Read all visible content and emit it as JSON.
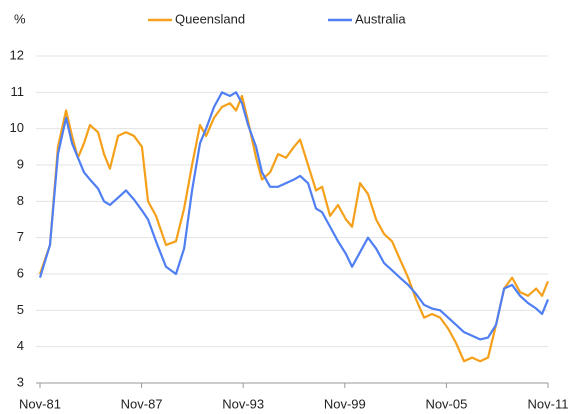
{
  "chart_data": {
    "type": "line",
    "y_label": "%",
    "xlim": [
      1981.83,
      2011.83
    ],
    "xticks": [
      {
        "value": 1981.83,
        "label": "Nov-81"
      },
      {
        "value": 1987.83,
        "label": "Nov-87"
      },
      {
        "value": 1993.83,
        "label": "Nov-93"
      },
      {
        "value": 1999.83,
        "label": "Nov-99"
      },
      {
        "value": 2005.83,
        "label": "Nov-05"
      },
      {
        "value": 2011.83,
        "label": "Nov-11"
      }
    ],
    "ylim": [
      3,
      12
    ],
    "yticks": [
      3,
      4,
      5,
      6,
      7,
      8,
      9,
      10,
      11,
      12
    ],
    "grid": true,
    "legend": "top",
    "x": [
      1981.83,
      1982.42,
      1982.89,
      1983.37,
      1983.72,
      1984.07,
      1984.43,
      1984.78,
      1985.26,
      1985.61,
      1985.96,
      1986.44,
      1986.91,
      1987.38,
      1987.85,
      1988.21,
      1988.68,
      1989.27,
      1989.86,
      1990.34,
      1990.81,
      1991.28,
      1991.64,
      1992.11,
      1992.58,
      1993.05,
      1993.41,
      1993.76,
      1994.12,
      1994.59,
      1994.94,
      1995.42,
      1995.89,
      1996.36,
      1996.83,
      1997.19,
      1997.66,
      1998.13,
      1998.49,
      1998.96,
      1999.43,
      1999.9,
      2000.26,
      2000.73,
      2001.2,
      2001.68,
      2002.15,
      2002.62,
      2003.09,
      2003.57,
      2004.04,
      2004.51,
      2004.98,
      2005.46,
      2005.93,
      2006.4,
      2006.87,
      2007.35,
      2007.82,
      2008.29,
      2008.76,
      2009.24,
      2009.71,
      2010.18,
      2010.65,
      2011.13,
      2011.48,
      2011.83
    ],
    "series": [
      {
        "name": "Queensland",
        "color": "#f5a01a",
        "values": [
          6.0,
          6.8,
          9.5,
          10.5,
          9.8,
          9.2,
          9.6,
          10.1,
          9.9,
          9.3,
          8.9,
          9.8,
          9.9,
          9.8,
          9.5,
          8.0,
          7.6,
          6.8,
          6.9,
          7.8,
          9.0,
          10.1,
          9.8,
          10.3,
          10.6,
          10.7,
          10.5,
          10.9,
          10.2,
          9.2,
          8.6,
          8.8,
          9.3,
          9.2,
          9.5,
          9.7,
          9.0,
          8.3,
          8.4,
          7.6,
          7.9,
          7.5,
          7.3,
          8.5,
          8.2,
          7.5,
          7.1,
          6.9,
          6.4,
          5.9,
          5.3,
          4.8,
          4.9,
          4.8,
          4.5,
          4.1,
          3.6,
          3.7,
          3.6,
          3.7,
          4.6,
          5.6,
          5.9,
          5.5,
          5.4,
          5.6,
          5.4,
          5.8
        ]
      },
      {
        "name": "Australia",
        "color": "#4f7ff2",
        "values": [
          5.9,
          6.8,
          9.3,
          10.3,
          9.6,
          9.2,
          8.8,
          8.6,
          8.35,
          8.0,
          7.9,
          8.1,
          8.3,
          8.05,
          7.75,
          7.5,
          6.9,
          6.2,
          6.0,
          6.7,
          8.3,
          9.6,
          10.0,
          10.6,
          11.0,
          10.9,
          11.0,
          10.7,
          10.1,
          9.5,
          8.8,
          8.4,
          8.4,
          8.5,
          8.6,
          8.7,
          8.5,
          7.8,
          7.7,
          7.3,
          6.9,
          6.55,
          6.2,
          6.6,
          7.0,
          6.7,
          6.3,
          6.1,
          5.9,
          5.7,
          5.45,
          5.15,
          5.05,
          5.0,
          4.8,
          4.6,
          4.4,
          4.3,
          4.2,
          4.25,
          4.6,
          5.6,
          5.7,
          5.4,
          5.2,
          5.05,
          4.9,
          5.3
        ]
      }
    ]
  }
}
